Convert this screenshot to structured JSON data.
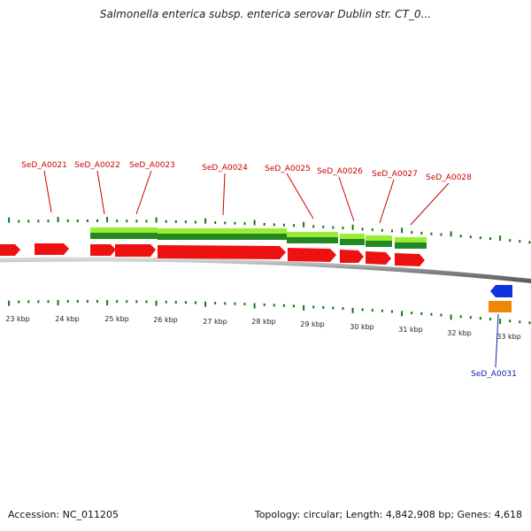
{
  "header": {
    "title": "Salmonella enterica subsp. enterica serovar Dublin str. CT_0..."
  },
  "footer": {
    "accession": "Accession: NC_011205",
    "summary": "Topology: circular; Length: 4,842,908 bp; Genes: 4,618"
  },
  "colors": {
    "forward_gene": "#ee1111",
    "reverse_gene_blue": "#1133dd",
    "reverse_gene_orange": "#ee8800",
    "feature_light": "#99ee33",
    "feature_dark": "#228822",
    "tick": "#117711",
    "backbone": "#9a9a9a",
    "label_forward": "#cc0000",
    "label_reverse": "#1122aa"
  },
  "ruler": {
    "unit": "kbp",
    "ticks": [
      "23 kbp",
      "24 kbp",
      "25 kbp",
      "26 kbp",
      "27 kbp",
      "28 kbp",
      "29 kbp",
      "30 kbp",
      "31 kbp",
      "32 kbp",
      "33 kbp"
    ]
  },
  "forward_labels": [
    "SeD_A0021",
    "SeD_A0022",
    "SeD_A0023",
    "SeD_A0024",
    "SeD_A0025",
    "SeD_A0026",
    "SeD_A0027",
    "SeD_A0028"
  ],
  "reverse_labels": [
    "SeD_A0031"
  ]
}
